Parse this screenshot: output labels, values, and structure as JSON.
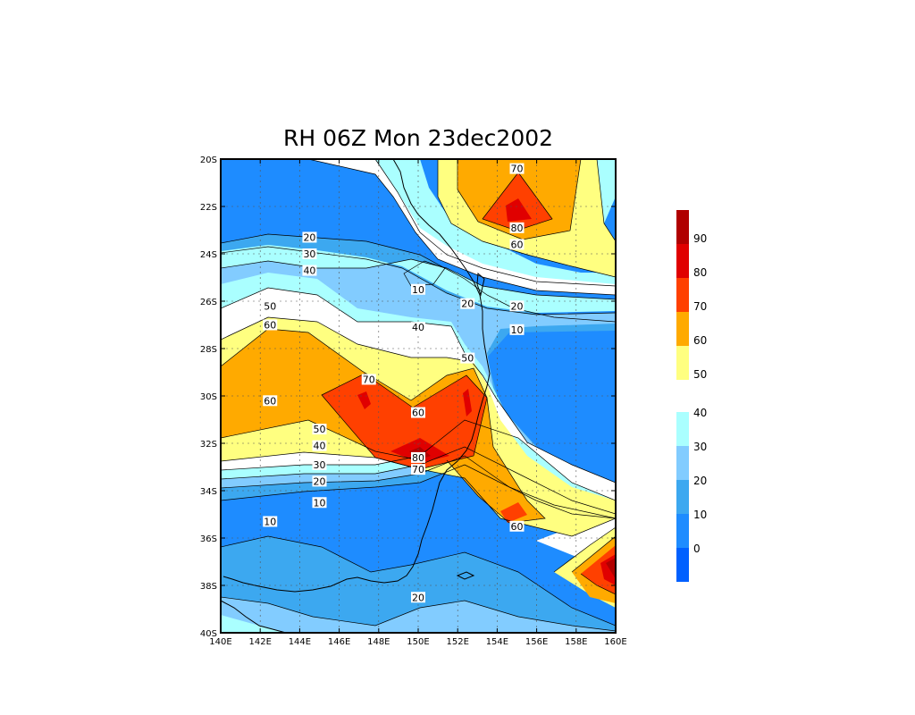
{
  "title": "RH 06Z Mon 23dec2002",
  "map": {
    "lon_range": [
      140,
      160
    ],
    "lat_range": [
      -40,
      -20
    ],
    "x_ticks": [
      "140E",
      "142E",
      "144E",
      "146E",
      "148E",
      "150E",
      "152E",
      "154E",
      "156E",
      "158E",
      "160E"
    ],
    "y_ticks": [
      "20S",
      "22S",
      "24S",
      "26S",
      "28S",
      "30S",
      "32S",
      "34S",
      "36S",
      "38S",
      "40S"
    ],
    "grid": true,
    "coastline": true
  },
  "colorbar": {
    "upper": {
      "labels": [
        "50",
        "60",
        "70",
        "80",
        "90"
      ],
      "colors": [
        "#ffff80",
        "#ffaa00",
        "#ff4000",
        "#e00000",
        "#b00000"
      ]
    },
    "lower": {
      "labels": [
        "0",
        "10",
        "20",
        "30",
        "40"
      ],
      "colors": [
        "#0060ff",
        "#1e8cff",
        "#3ca8f0",
        "#82ccff",
        "#aaffff"
      ]
    }
  },
  "contour_labels": [
    {
      "text": "70",
      "lon": 155.0,
      "lat": -20.4
    },
    {
      "text": "80",
      "lon": 155.0,
      "lat": -22.9
    },
    {
      "text": "60",
      "lon": 155.0,
      "lat": -23.6
    },
    {
      "text": "20",
      "lon": 144.5,
      "lat": -23.3
    },
    {
      "text": "30",
      "lon": 144.5,
      "lat": -24.0
    },
    {
      "text": "40",
      "lon": 144.5,
      "lat": -24.7
    },
    {
      "text": "10",
      "lon": 150.0,
      "lat": -25.5
    },
    {
      "text": "20",
      "lon": 152.5,
      "lat": -26.1
    },
    {
      "text": "20",
      "lon": 155.0,
      "lat": -26.2
    },
    {
      "text": "50",
      "lon": 142.5,
      "lat": -26.2
    },
    {
      "text": "60",
      "lon": 142.5,
      "lat": -27.0
    },
    {
      "text": "40",
      "lon": 150.0,
      "lat": -27.1
    },
    {
      "text": "10",
      "lon": 155.0,
      "lat": -27.2
    },
    {
      "text": "50",
      "lon": 152.5,
      "lat": -28.4
    },
    {
      "text": "70",
      "lon": 147.5,
      "lat": -29.3
    },
    {
      "text": "60",
      "lon": 142.5,
      "lat": -30.2
    },
    {
      "text": "60",
      "lon": 150.0,
      "lat": -30.7
    },
    {
      "text": "50",
      "lon": 145.0,
      "lat": -31.4
    },
    {
      "text": "40",
      "lon": 145.0,
      "lat": -32.1
    },
    {
      "text": "30",
      "lon": 145.0,
      "lat": -32.9
    },
    {
      "text": "80",
      "lon": 150.0,
      "lat": -32.6
    },
    {
      "text": "70",
      "lon": 150.0,
      "lat": -33.1
    },
    {
      "text": "20",
      "lon": 145.0,
      "lat": -33.6
    },
    {
      "text": "10",
      "lon": 145.0,
      "lat": -34.5
    },
    {
      "text": "10",
      "lon": 142.5,
      "lat": -35.3
    },
    {
      "text": "60",
      "lon": 155.0,
      "lat": -35.5
    },
    {
      "text": "20",
      "lon": 150.0,
      "lat": -38.5
    }
  ]
}
